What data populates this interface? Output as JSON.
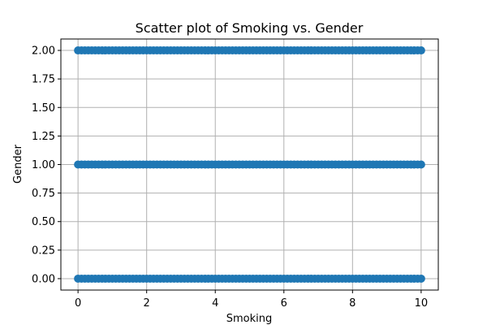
{
  "chart_data": {
    "type": "scatter",
    "title": "Scatter plot of Smoking vs. Gender",
    "xlabel": "Smoking",
    "ylabel": "Gender",
    "xlim": [
      -0.5,
      10.5
    ],
    "ylim": [
      -0.1,
      2.1
    ],
    "x_ticks": [
      0,
      2,
      4,
      6,
      8,
      10
    ],
    "x_tick_labels": [
      "0",
      "2",
      "4",
      "6",
      "8",
      "10"
    ],
    "y_ticks": [
      0,
      0.25,
      0.5,
      0.75,
      1.0,
      1.25,
      1.5,
      1.75,
      2.0
    ],
    "y_tick_labels": [
      "0.00",
      "0.25",
      "0.50",
      "0.75",
      "1.00",
      "1.25",
      "1.50",
      "1.75",
      "2.00"
    ],
    "grid": true,
    "marker_color": "#1f77b4",
    "series": [
      {
        "x": [
          0,
          0.1,
          0.2,
          0.3,
          0.4,
          0.5,
          0.6,
          0.7,
          0.8,
          0.9,
          1,
          1.1,
          1.2,
          1.3,
          1.4,
          1.5,
          1.6,
          1.7,
          1.8,
          1.9,
          2,
          2.1,
          2.2,
          2.3,
          2.4,
          2.5,
          2.6,
          2.7,
          2.8,
          2.9,
          3,
          3.1,
          3.2,
          3.3,
          3.4,
          3.5,
          3.6,
          3.7,
          3.8,
          3.9,
          4,
          4.1,
          4.2,
          4.3,
          4.4,
          4.5,
          4.6,
          4.7,
          4.8,
          4.9,
          5,
          5.1,
          5.2,
          5.3,
          5.4,
          5.5,
          5.6,
          5.7,
          5.8,
          5.9,
          6,
          6.1,
          6.2,
          6.3,
          6.4,
          6.5,
          6.6,
          6.7,
          6.8,
          6.9,
          7,
          7.1,
          7.2,
          7.3,
          7.4,
          7.5,
          7.6,
          7.7,
          7.8,
          7.9,
          8,
          8.1,
          8.2,
          8.3,
          8.4,
          8.5,
          8.6,
          8.7,
          8.8,
          8.9,
          9,
          9.1,
          9.2,
          9.3,
          9.4,
          9.5,
          9.6,
          9.7,
          9.8,
          9.9,
          10,
          0,
          0.1,
          0.2,
          0.3,
          0.4,
          0.5,
          0.6,
          0.7,
          0.8,
          0.9,
          1,
          1.1,
          1.2,
          1.3,
          1.4,
          1.5,
          1.6,
          1.7,
          1.8,
          1.9,
          2,
          2.1,
          2.2,
          2.3,
          2.4,
          2.5,
          2.6,
          2.7,
          2.8,
          2.9,
          3,
          3.1,
          3.2,
          3.3,
          3.4,
          3.5,
          3.6,
          3.7,
          3.8,
          3.9,
          4,
          4.1,
          4.2,
          4.3,
          4.4,
          4.5,
          4.6,
          4.7,
          4.8,
          4.9,
          5,
          5.1,
          5.2,
          5.3,
          5.4,
          5.5,
          5.6,
          5.7,
          5.8,
          5.9,
          6,
          6.1,
          6.2,
          6.3,
          6.4,
          6.5,
          6.6,
          6.7,
          6.8,
          6.9,
          7,
          7.1,
          7.2,
          7.3,
          7.4,
          7.5,
          7.6,
          7.7,
          7.8,
          7.9,
          8,
          8.1,
          8.2,
          8.3,
          8.4,
          8.5,
          8.6,
          8.7,
          8.8,
          8.9,
          9,
          9.1,
          9.2,
          9.3,
          9.4,
          9.5,
          9.6,
          9.7,
          9.8,
          9.9,
          10,
          0,
          0.1,
          0.2,
          0.3,
          0.4,
          0.5,
          0.6,
          0.7,
          0.8,
          0.9,
          1,
          1.1,
          1.2,
          1.3,
          1.4,
          1.5,
          1.6,
          1.7,
          1.8,
          1.9,
          2,
          2.1,
          2.2,
          2.3,
          2.4,
          2.5,
          2.6,
          2.7,
          2.8,
          2.9,
          3,
          3.1,
          3.2,
          3.3,
          3.4,
          3.5,
          3.6,
          3.7,
          3.8,
          3.9,
          4,
          4.1,
          4.2,
          4.3,
          4.4,
          4.5,
          4.6,
          4.7,
          4.8,
          4.9,
          5,
          5.1,
          5.2,
          5.3,
          5.4,
          5.5,
          5.6,
          5.7,
          5.8,
          5.9,
          6,
          6.1,
          6.2,
          6.3,
          6.4,
          6.5,
          6.6,
          6.7,
          6.8,
          6.9,
          7,
          7.1,
          7.2,
          7.3,
          7.4,
          7.5,
          7.6,
          7.7,
          7.8,
          7.9,
          8,
          8.1,
          8.2,
          8.3,
          8.4,
          8.5,
          8.6,
          8.7,
          8.8,
          8.9,
          9,
          9.1,
          9.2,
          9.3,
          9.4,
          9.5,
          9.6,
          9.7,
          9.8,
          9.9,
          10
        ],
        "y": [
          0,
          0,
          0,
          0,
          0,
          0,
          0,
          0,
          0,
          0,
          0,
          0,
          0,
          0,
          0,
          0,
          0,
          0,
          0,
          0,
          0,
          0,
          0,
          0,
          0,
          0,
          0,
          0,
          0,
          0,
          0,
          0,
          0,
          0,
          0,
          0,
          0,
          0,
          0,
          0,
          0,
          0,
          0,
          0,
          0,
          0,
          0,
          0,
          0,
          0,
          0,
          0,
          0,
          0,
          0,
          0,
          0,
          0,
          0,
          0,
          0,
          0,
          0,
          0,
          0,
          0,
          0,
          0,
          0,
          0,
          0,
          0,
          0,
          0,
          0,
          0,
          0,
          0,
          0,
          0,
          0,
          0,
          0,
          0,
          0,
          0,
          0,
          0,
          0,
          0,
          0,
          0,
          0,
          0,
          0,
          0,
          0,
          0,
          0,
          0,
          0,
          1,
          1,
          1,
          1,
          1,
          1,
          1,
          1,
          1,
          1,
          1,
          1,
          1,
          1,
          1,
          1,
          1,
          1,
          1,
          1,
          1,
          1,
          1,
          1,
          1,
          1,
          1,
          1,
          1,
          1,
          1,
          1,
          1,
          1,
          1,
          1,
          1,
          1,
          1,
          1,
          1,
          1,
          1,
          1,
          1,
          1,
          1,
          1,
          1,
          1,
          1,
          1,
          1,
          1,
          1,
          1,
          1,
          1,
          1,
          1,
          1,
          1,
          1,
          1,
          1,
          1,
          1,
          1,
          1,
          1,
          1,
          1,
          1,
          1,
          1,
          1,
          1,
          1,
          1,
          1,
          1,
          1,
          1,
          1,
          1,
          1,
          1,
          1,
          1,
          1,
          1,
          1,
          1,
          1,
          1,
          1,
          1,
          1,
          1,
          1,
          1,
          2,
          2,
          2,
          2,
          2,
          2,
          2,
          2,
          2,
          2,
          2,
          2,
          2,
          2,
          2,
          2,
          2,
          2,
          2,
          2,
          2,
          2,
          2,
          2,
          2,
          2,
          2,
          2,
          2,
          2,
          2,
          2,
          2,
          2,
          2,
          2,
          2,
          2,
          2,
          2,
          2,
          2,
          2,
          2,
          2,
          2,
          2,
          2,
          2,
          2,
          2,
          2,
          2,
          2,
          2,
          2,
          2,
          2,
          2,
          2,
          2,
          2,
          2,
          2,
          2,
          2,
          2,
          2,
          2,
          2,
          2,
          2,
          2,
          2,
          2,
          2,
          2,
          2,
          2,
          2,
          2,
          2,
          2,
          2,
          2,
          2,
          2,
          2,
          2,
          2,
          2,
          2,
          2,
          2,
          2,
          2,
          2,
          2,
          2,
          2,
          2
        ]
      }
    ]
  }
}
